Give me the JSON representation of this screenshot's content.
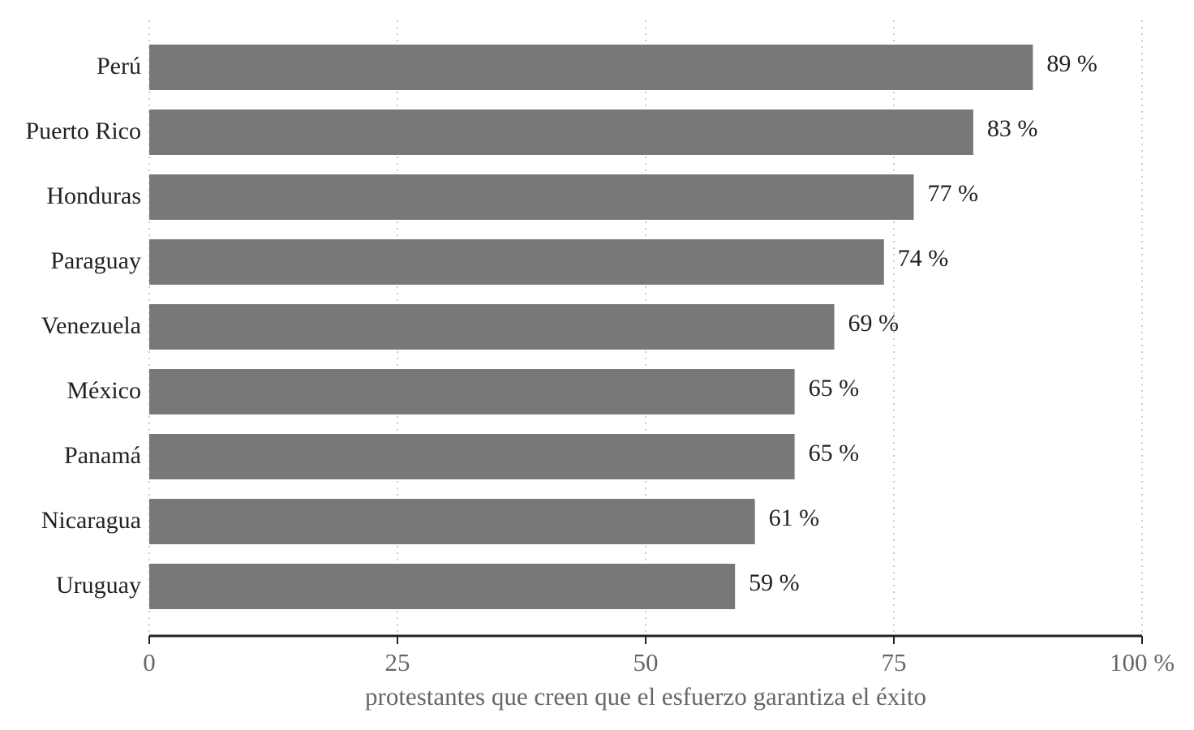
{
  "chart_data": {
    "type": "barh",
    "x_label": "protestantes que creen que el esfuerzo garantiza el éxito",
    "categories": [
      "Perú",
      "Puerto Rico",
      "Honduras",
      "Paraguay",
      "Venezuela",
      "México",
      "Panamá",
      "Nicaragua",
      "Uruguay"
    ],
    "values": [
      89,
      83,
      77,
      74,
      69,
      65,
      65,
      61,
      59
    ],
    "value_labels": [
      "89 %",
      "83 %",
      "77 %",
      "74 %",
      "69 %",
      "65 %",
      "65 %",
      "61 %",
      "59 %"
    ],
    "color": "#787878",
    "xlim": [
      0,
      100
    ],
    "xticks": [
      0,
      25,
      50,
      75,
      {
        "value": 100,
        "label": "100 %"
      }
    ],
    "grid": true
  }
}
